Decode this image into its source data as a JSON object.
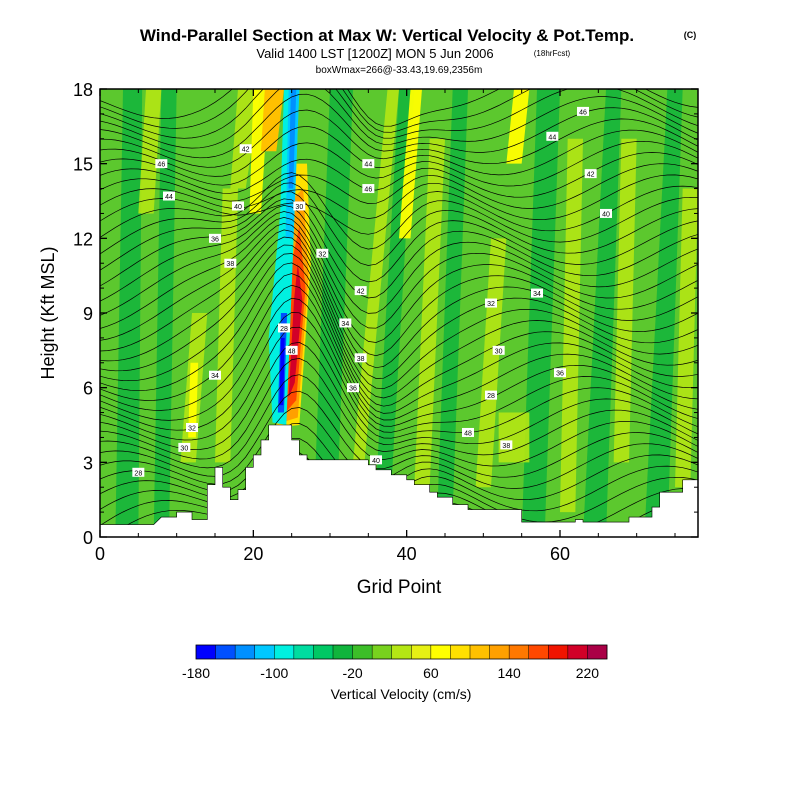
{
  "header": {
    "title": "Wind-Parallel Section at Max W: Vertical Velocity & Pot.Temp.",
    "copyright": "(C)",
    "subtitle_main": "Valid 1400 LST [1200Z] MON 5 Jun 2006",
    "subtitle_fcst": "(18hrFcst)",
    "subtitle2": "boxWmax=266@-33.43,19.69,2356m"
  },
  "chart_data": {
    "type": "heatmap",
    "xlabel": "Grid Point",
    "ylabel": "Height (Kft MSL)",
    "xlim": [
      0,
      78
    ],
    "ylim": [
      0,
      18
    ],
    "x_ticks": [
      0,
      20,
      40,
      60
    ],
    "y_ticks": [
      0,
      3,
      6,
      9,
      12,
      15,
      18
    ],
    "max_w": 266,
    "colorbar": {
      "label": "Vertical Velocity (cm/s)",
      "tick_labels": [
        "-180",
        "-100",
        "-20",
        "60",
        "140",
        "220"
      ],
      "tick_values": [
        -180,
        -100,
        -20,
        60,
        140,
        220
      ],
      "levels": [
        -180,
        -160,
        -140,
        -120,
        -100,
        -80,
        -60,
        -40,
        -20,
        0,
        20,
        40,
        60,
        80,
        100,
        120,
        140,
        160,
        180,
        200,
        220,
        240
      ],
      "colors": [
        "#0000ff",
        "#0050ff",
        "#0090ff",
        "#00c8ff",
        "#00f0e0",
        "#00dca0",
        "#00c864",
        "#10b43c",
        "#3cbe28",
        "#78d21e",
        "#b4e614",
        "#e6f014",
        "#ffff00",
        "#ffe000",
        "#ffc000",
        "#ffa000",
        "#ff7800",
        "#ff4800",
        "#f01400",
        "#d20028",
        "#aa0046"
      ]
    },
    "theta_contour_labels": [
      "28",
      "30",
      "32",
      "34",
      "36",
      "38",
      "40",
      "42",
      "44",
      "46",
      "48"
    ],
    "terrain": [
      [
        0,
        0.5
      ],
      [
        2,
        0.5
      ],
      [
        5,
        0.5
      ],
      [
        7,
        0.5
      ],
      [
        8,
        0.8
      ],
      [
        10,
        0.8
      ],
      [
        10,
        1.0
      ],
      [
        12,
        1.0
      ],
      [
        12,
        0.7
      ],
      [
        14,
        0.7
      ],
      [
        14,
        2.1
      ],
      [
        15,
        2.1
      ],
      [
        15,
        2.8
      ],
      [
        16,
        2.8
      ],
      [
        16,
        2.0
      ],
      [
        17,
        2.0
      ],
      [
        17,
        1.5
      ],
      [
        18,
        1.5
      ],
      [
        18,
        1.9
      ],
      [
        19,
        1.9
      ],
      [
        19,
        2.8
      ],
      [
        20,
        2.8
      ],
      [
        20,
        3.3
      ],
      [
        21,
        3.3
      ],
      [
        21,
        3.9
      ],
      [
        22,
        3.9
      ],
      [
        22,
        4.5
      ],
      [
        25,
        4.5
      ],
      [
        25,
        3.9
      ],
      [
        26,
        3.9
      ],
      [
        26,
        3.3
      ],
      [
        27,
        3.3
      ],
      [
        27,
        3.1
      ],
      [
        35,
        3.1
      ],
      [
        35,
        2.9
      ],
      [
        36,
        2.9
      ],
      [
        36,
        2.7
      ],
      [
        38,
        2.7
      ],
      [
        38,
        2.5
      ],
      [
        40,
        2.5
      ],
      [
        40,
        2.3
      ],
      [
        41,
        2.3
      ],
      [
        41,
        2.1
      ],
      [
        43,
        2.1
      ],
      [
        43,
        1.8
      ],
      [
        44,
        1.8
      ],
      [
        44,
        1.6
      ],
      [
        46,
        1.6
      ],
      [
        46,
        1.3
      ],
      [
        48,
        1.3
      ],
      [
        48,
        1.1
      ],
      [
        55,
        1.1
      ],
      [
        55,
        0.6
      ],
      [
        62,
        0.6
      ],
      [
        62,
        0.7
      ],
      [
        63,
        0.7
      ],
      [
        63,
        0.6
      ],
      [
        69,
        0.6
      ],
      [
        69,
        0.8
      ],
      [
        72,
        0.8
      ],
      [
        72,
        1.2
      ],
      [
        73,
        1.2
      ],
      [
        73,
        1.8
      ],
      [
        76,
        1.8
      ],
      [
        76,
        2.3
      ],
      [
        78,
        2.3
      ]
    ]
  }
}
